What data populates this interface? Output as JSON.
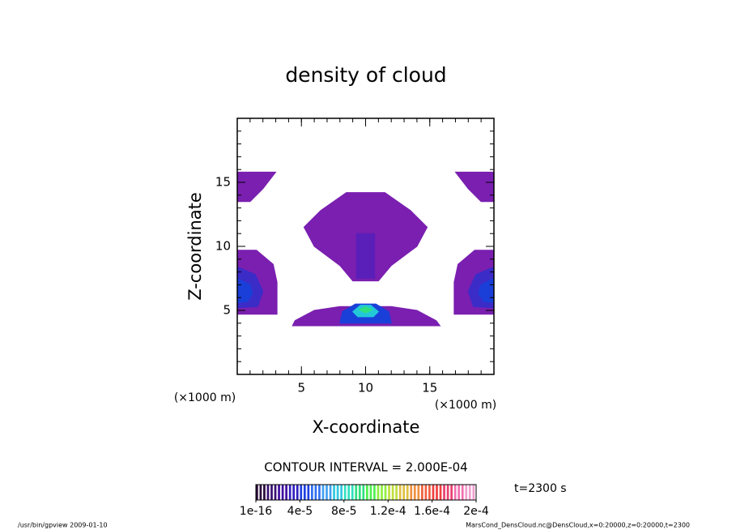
{
  "chart_data": {
    "type": "contour",
    "title": "density of cloud",
    "xlabel": "X-coordinate",
    "ylabel": "Z-coordinate",
    "xunit": "(×1000 m)",
    "yunit": "(×1000 m)",
    "xlim": [
      0,
      20
    ],
    "ylim": [
      0,
      20
    ],
    "xticks": [
      5,
      10,
      15
    ],
    "yticks": [
      5,
      10,
      15
    ],
    "regions": [
      {
        "level": 2e-05,
        "color": "#7a1fb0",
        "x": [
          0,
          3,
          2,
          1,
          0
        ],
        "y": [
          15.8,
          15.8,
          14.5,
          13.5,
          13.5
        ]
      },
      {
        "level": 2e-05,
        "color": "#7a1fb0",
        "x": [
          20,
          17,
          18,
          19,
          20
        ],
        "y": [
          15.8,
          15.8,
          14.5,
          13.5,
          13.5
        ]
      },
      {
        "level": 2e-05,
        "color": "#7a1fb0",
        "x": [
          8.5,
          11.5,
          13.5,
          14.8,
          14,
          12,
          11,
          9,
          8,
          6,
          5.2,
          6.5
        ],
        "y": [
          14.2,
          14.2,
          12.8,
          11.5,
          10,
          8.5,
          7.3,
          7.3,
          8.5,
          10,
          11.5,
          12.8
        ]
      },
      {
        "level": 4e-05,
        "color": "#5a1fb8",
        "x": [
          9.3,
          10.7,
          10.7,
          9.3
        ],
        "y": [
          11,
          11,
          7.5,
          7.5
        ]
      },
      {
        "level": 2e-05,
        "color": "#7a1fb0",
        "x": [
          0,
          1.5,
          2.8,
          3.1,
          3.1,
          2.6,
          0
        ],
        "y": [
          9.7,
          9.7,
          8.6,
          7.2,
          4.7,
          4.7,
          4.7
        ]
      },
      {
        "level": 4e-05,
        "color": "#3b2cc8",
        "x": [
          0,
          1.4,
          2,
          1.6,
          0
        ],
        "y": [
          8.4,
          7.8,
          6.5,
          5.3,
          5.2
        ]
      },
      {
        "level": 6e-05,
        "color": "#1a3fd8",
        "x": [
          0,
          1,
          1.2,
          0.8,
          0
        ],
        "y": [
          7.5,
          7,
          6.3,
          5.7,
          5.6
        ]
      },
      {
        "level": 2e-05,
        "color": "#7a1fb0",
        "x": [
          20,
          18.5,
          17.2,
          16.9,
          16.9,
          17.4,
          20
        ],
        "y": [
          9.7,
          9.7,
          8.6,
          7.2,
          4.7,
          4.7,
          4.7
        ]
      },
      {
        "level": 4e-05,
        "color": "#3b2cc8",
        "x": [
          20,
          18.6,
          18,
          18.4,
          20
        ],
        "y": [
          8.4,
          7.8,
          6.5,
          5.3,
          5.2
        ]
      },
      {
        "level": 6e-05,
        "color": "#1a3fd8",
        "x": [
          20,
          19,
          18.8,
          19.2,
          20
        ],
        "y": [
          7.5,
          7,
          6.3,
          5.7,
          5.6
        ]
      },
      {
        "level": 2e-05,
        "color": "#7a1fb0",
        "x": [
          6,
          8,
          12,
          14,
          15.5,
          15.8,
          4.3,
          4.5
        ],
        "y": [
          5,
          5.3,
          5.3,
          5,
          4.2,
          3.8,
          3.8,
          4.2
        ]
      },
      {
        "level": 6e-05,
        "color": "#1a3fd8",
        "x": [
          8.2,
          9.2,
          10.8,
          11.8,
          12,
          8
        ],
        "y": [
          4.9,
          5.5,
          5.5,
          4.9,
          4,
          4
        ]
      },
      {
        "level": 0.0001,
        "color": "#22c8d8",
        "x": [
          9,
          9.6,
          10.4,
          11,
          10.6,
          9.4
        ],
        "y": [
          4.9,
          5.4,
          5.4,
          4.9,
          4.5,
          4.5
        ]
      },
      {
        "level": 0.00012,
        "color": "#30e080",
        "x": [
          9.5,
          10,
          10.5,
          10
        ],
        "y": [
          5.05,
          5.3,
          5.05,
          4.8
        ]
      }
    ],
    "colorbar": {
      "lim": [
        1e-16,
        0.0002
      ],
      "ticks": [
        1e-16,
        {
          "value": 4e-05,
          "label": "4e-5"
        },
        {
          "value": 8e-05,
          "label": "8e-5"
        },
        {
          "value": 0.00012,
          "label": "1.2e-4"
        },
        {
          "value": 0.00016,
          "label": "1.6e-4"
        },
        {
          "value": 0.0002,
          "label": "2e-4"
        }
      ],
      "colors": [
        "#2a0a3a",
        "#3a1070",
        "#4010a0",
        "#3020c0",
        "#2040e0",
        "#3070f0",
        "#40a0f0",
        "#30c8e0",
        "#30e0c0",
        "#30e080",
        "#50f050",
        "#90f040",
        "#c0e040",
        "#e0c040",
        "#f09040",
        "#f06040",
        "#f04040",
        "#e84070",
        "#f070b0",
        "#f0a0d0"
      ]
    },
    "annotations": {
      "contour_interval": "CONTOUR INTERVAL = 2.000E-04",
      "time": "t=2300 s",
      "footer_left": "/usr/bin/gpview  2009-01-10",
      "footer_right": "MarsCond_DensCloud.nc@DensCloud,x=0:20000,z=0:20000,t=2300"
    }
  }
}
